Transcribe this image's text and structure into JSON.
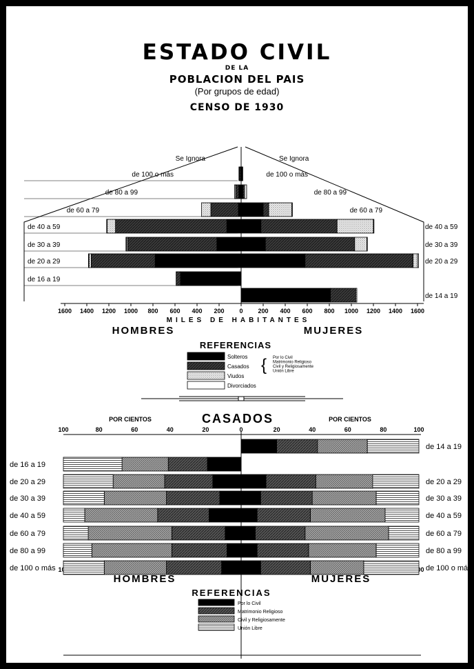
{
  "titles": {
    "title": "ESTADO CIVIL",
    "de_la": "DE LA",
    "subtitle": "POBLACION DEL PAIS",
    "grouping": "(Por grupos de edad)",
    "census": "CENSO DE 1930"
  },
  "colors": {
    "solteros": "#000000",
    "casados": "#3a3a3a",
    "viudos": "#e6e6e6",
    "divorciados": "#ffffff"
  },
  "chart_data": [
    {
      "type": "bar",
      "orientation": "horizontal",
      "layout": "population-pyramid",
      "xlabel": "MILES DE HABITANTES",
      "left_label": "HOMBRES",
      "right_label": "MUJERES",
      "xlim": [
        0,
        1600
      ],
      "x_ticks": [
        1600,
        1400,
        1200,
        1000,
        800,
        600,
        400,
        200,
        0,
        200,
        400,
        600,
        800,
        1000,
        1200,
        1400,
        1600
      ],
      "categories": [
        "Se Ignora",
        "de 100 o más",
        "de 80 a 99",
        "de 60 a 79",
        "de 40 a 59",
        "de 30 a 39",
        "de 20 a 29",
        "de 16 a 19",
        "de 14 a 19"
      ],
      "series": [
        {
          "name": "Solteros",
          "side": "HOMBRES",
          "values": [
            0,
            5,
            20,
            25,
            130,
            220,
            780,
            550,
            0
          ]
        },
        {
          "name": "Casados",
          "side": "HOMBRES",
          "values": [
            0,
            10,
            30,
            250,
            1010,
            810,
            580,
            40,
            0
          ]
        },
        {
          "name": "Viudos",
          "side": "HOMBRES",
          "values": [
            0,
            5,
            10,
            85,
            75,
            10,
            20,
            0,
            0
          ]
        },
        {
          "name": "Divorciados",
          "side": "HOMBRES",
          "values": [
            0,
            0,
            0,
            0,
            5,
            5,
            5,
            0,
            0
          ]
        },
        {
          "name": "Solteros",
          "side": "MUJERES",
          "values": [
            0,
            5,
            15,
            200,
            180,
            220,
            580,
            0,
            810
          ]
        },
        {
          "name": "Casados",
          "side": "MUJERES",
          "values": [
            0,
            5,
            15,
            50,
            690,
            810,
            980,
            0,
            230
          ]
        },
        {
          "name": "Viudos",
          "side": "MUJERES",
          "values": [
            0,
            5,
            20,
            210,
            330,
            110,
            40,
            0,
            10
          ]
        },
        {
          "name": "Divorciados",
          "side": "MUJERES",
          "values": [
            0,
            0,
            0,
            5,
            5,
            5,
            10,
            0,
            0
          ]
        }
      ],
      "legend": {
        "title": "REFERENCIAS",
        "items": [
          "Solteros",
          "Casados",
          "Viudos",
          "Divorciados"
        ],
        "casados_sub": [
          "Por lo Civil",
          "Matrimonio Religioso",
          "Civil y Religiosamente",
          "Unión Libre"
        ]
      }
    },
    {
      "type": "bar",
      "orientation": "horizontal",
      "stacked": true,
      "title": "CASADOS",
      "units": "POR CIENTOS",
      "left_label": "HOMBRES",
      "right_label": "MUJERES",
      "xlim": [
        0,
        100
      ],
      "x_ticks": [
        100,
        80,
        60,
        40,
        20,
        0,
        20,
        40,
        60,
        80,
        100
      ],
      "categories": [
        "de 14 a 19",
        "de 16 a 19",
        "de 20 a 29",
        "de 30 a 39",
        "de 40 a 59",
        "de 60 a 79",
        "de 80 a 99",
        "de 100 o más"
      ],
      "series": [
        {
          "name": "Por lo Civil",
          "side": "HOMBRES",
          "values": [
            0,
            19,
            16,
            12,
            18,
            9,
            8,
            11
          ]
        },
        {
          "name": "Matrimonio Religioso",
          "side": "HOMBRES",
          "values": [
            0,
            22,
            27,
            30,
            29,
            30,
            31,
            31
          ]
        },
        {
          "name": "Civil y Religiosamente",
          "side": "HOMBRES",
          "values": [
            0,
            26,
            29,
            35,
            41,
            47,
            45,
            35
          ]
        },
        {
          "name": "Unión Libre",
          "side": "HOMBRES",
          "values": [
            0,
            33,
            28,
            23,
            12,
            14,
            16,
            23
          ]
        },
        {
          "name": "Por lo Civil",
          "side": "MUJERES",
          "values": [
            20,
            0,
            14,
            11,
            9,
            8,
            9,
            11
          ]
        },
        {
          "name": "Matrimonio Religioso",
          "side": "MUJERES",
          "values": [
            23,
            0,
            28,
            29,
            30,
            28,
            29,
            28
          ]
        },
        {
          "name": "Civil y Religiosamente",
          "side": "MUJERES",
          "values": [
            28,
            0,
            32,
            36,
            42,
            47,
            38,
            30
          ]
        },
        {
          "name": "Unión Libre",
          "side": "MUJERES",
          "values": [
            29,
            0,
            26,
            24,
            19,
            17,
            24,
            31
          ]
        }
      ],
      "legend": {
        "title": "REFERENCIAS",
        "items": [
          "Por lo Civil",
          "Matrimonio Religioso",
          "Civil y Religiosamente",
          "Unión Libre"
        ]
      }
    }
  ]
}
